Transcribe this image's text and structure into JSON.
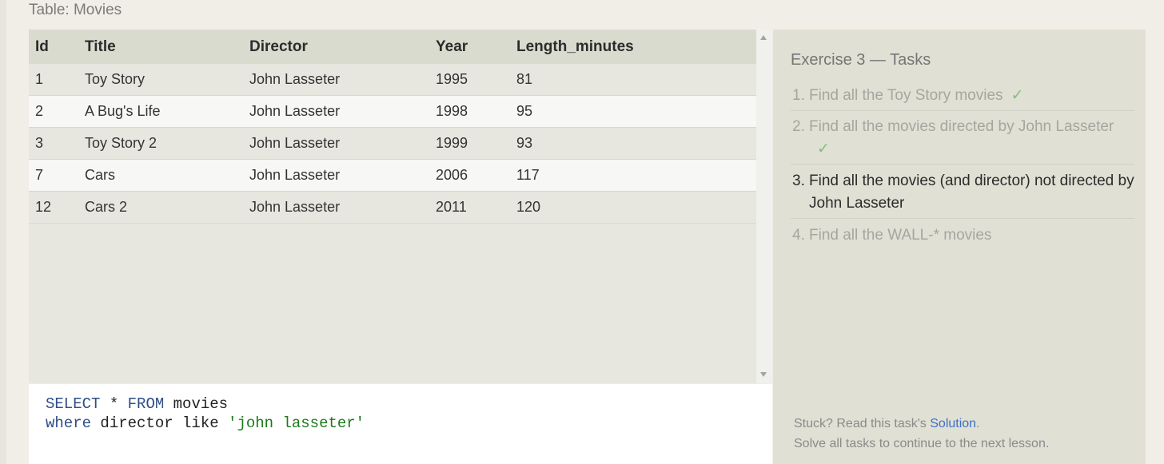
{
  "table_caption": "Table: Movies",
  "results": {
    "columns": [
      "Id",
      "Title",
      "Director",
      "Year",
      "Length_minutes"
    ],
    "rows": [
      [
        "1",
        "Toy Story",
        "John Lasseter",
        "1995",
        "81"
      ],
      [
        "2",
        "A Bug's Life",
        "John Lasseter",
        "1998",
        "95"
      ],
      [
        "3",
        "Toy Story 2",
        "John Lasseter",
        "1999",
        "93"
      ],
      [
        "7",
        "Cars",
        "John Lasseter",
        "2006",
        "117"
      ],
      [
        "12",
        "Cars 2",
        "John Lasseter",
        "2011",
        "120"
      ]
    ]
  },
  "editor": {
    "line1": {
      "kw1": "SELECT",
      "mid": " * ",
      "kw2": "FROM",
      "rest": " movies"
    },
    "line2": {
      "kw": "where",
      "mid": " director like ",
      "str": "'john lasseter'"
    }
  },
  "tasks": {
    "title": "Exercise 3 — Tasks",
    "items": [
      {
        "num": "1.",
        "text": "Find all the Toy Story movies",
        "check": "✓"
      },
      {
        "num": "2.",
        "text": "Find all the movies directed by John Lasseter",
        "check": "✓"
      },
      {
        "num": "3.",
        "text": "Find all the movies (and director) not directed by John Lasseter"
      },
      {
        "num": "4.",
        "text": "Find all the WALL-* movies"
      }
    ],
    "stuck_prefix": "Stuck? Read this task's ",
    "solution_link": "Solution",
    "stuck_suffix": ".",
    "continue_note": "Solve all tasks to continue to the next lesson."
  },
  "colors": {
    "keyword": "#2e4e86",
    "string": "#1a7a1a",
    "check": "#7fbf7f",
    "link": "#3f6fc5"
  }
}
